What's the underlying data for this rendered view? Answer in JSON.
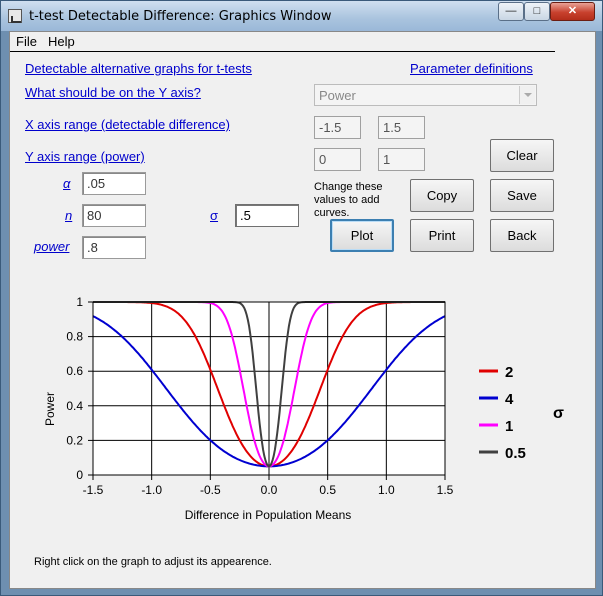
{
  "window": {
    "title": "t-test Detectable Difference:  Graphics Window",
    "btn_min": "—",
    "btn_max": "□",
    "btn_close": "✕"
  },
  "menu": {
    "file": "File",
    "help": "Help"
  },
  "links": {
    "detectable": "Detectable alternative graphs for t-tests",
    "param_defs": "Parameter definitions",
    "y_axis_q": "What should be on the Y axis?",
    "x_range": "X axis range (detectable difference)",
    "y_range": "Y axis range (power)",
    "alpha": "α",
    "n": "n",
    "sigma": "σ",
    "power": "power"
  },
  "y_axis_select": {
    "value": "Power"
  },
  "fields": {
    "x_min": "-1.5",
    "x_max": "1.5",
    "y_min": "0",
    "y_max": "1",
    "alpha": ".05",
    "n": "80",
    "sigma": ".5",
    "power": ".8"
  },
  "note": {
    "line1": "Change these",
    "line2": "values to add",
    "line3": "curves."
  },
  "buttons": {
    "clear": "Clear",
    "copy": "Copy",
    "save": "Save",
    "plot": "Plot",
    "print": "Print",
    "back": "Back"
  },
  "status": "Right click on the graph to adjust its appearence.",
  "colors": {
    "s2": "#e00000",
    "s4": "#0000d0",
    "s1": "#ff00ff",
    "s05": "#404040"
  },
  "chart_data": {
    "type": "line",
    "xlabel": "Difference in Population Means",
    "ylabel": "Power",
    "xlim": [
      -1.5,
      1.5
    ],
    "ylim": [
      0,
      1
    ],
    "xticks": [
      "-1.5",
      "-1.0",
      "-0.5",
      "0.0",
      "0.5",
      "1.0",
      "1.5"
    ],
    "yticks": [
      "0",
      "0.2",
      "0.4",
      "0.6",
      "0.8",
      "1"
    ],
    "grid": true,
    "legend_title": "σ",
    "series": [
      {
        "name": "2",
        "sigma": 2,
        "color": "#e00000"
      },
      {
        "name": "4",
        "sigma": 4,
        "color": "#0000d0"
      },
      {
        "name": "1",
        "sigma": 1,
        "color": "#ff00ff"
      },
      {
        "name": "0.5",
        "sigma": 0.5,
        "color": "#404040"
      }
    ]
  }
}
